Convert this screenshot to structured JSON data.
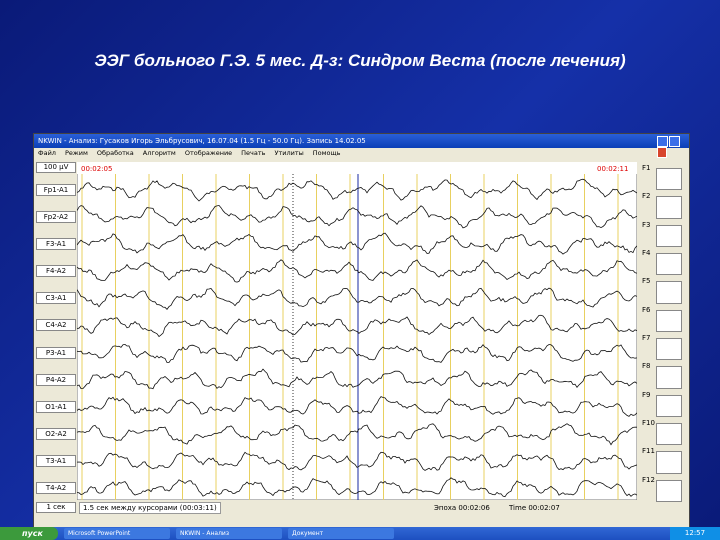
{
  "slide": {
    "title": "ЭЭГ больного Г.Э. 5 мес. Д-з: Синдром Веста (после лечения)"
  },
  "window": {
    "title": "NKWIN - Анализ: Гусаков Игорь Эльбрусович, 16.07.04 (1.5 Гц - 50.0 Гц). Запись 14.02.05",
    "menu": [
      "Файл",
      "Режим",
      "Обработка",
      "Алгоритм",
      "Отображение",
      "Печать",
      "Утилиты",
      "Помощь"
    ],
    "scale": "100 µV",
    "time_start": "00:02:05",
    "time_end": "00:02:11",
    "channels": [
      "Fp1-A1",
      "Fp2-A2",
      "F3-A1",
      "F4-A2",
      "C3-A1",
      "C4-A2",
      "P3-A1",
      "P4-A2",
      "O1-A1",
      "O2-A2",
      "T3-A1",
      "T4-A2"
    ],
    "function_keys": [
      "F1",
      "F2",
      "F3",
      "F4",
      "F5",
      "F6",
      "F7",
      "F8",
      "F9",
      "F10",
      "F11",
      "F12"
    ],
    "time_scale": "1 сек",
    "status_left": "1.5 сек между курсорами (00:03:11)",
    "status_epoch": "Эпоха 00:02:06",
    "status_time": "Time 00:02:07"
  },
  "taskbar": {
    "start": "пуск",
    "items": [
      "Microsoft PowerPoint",
      "NKWIN - Анализ",
      "Документ"
    ],
    "clock": "12:57"
  }
}
